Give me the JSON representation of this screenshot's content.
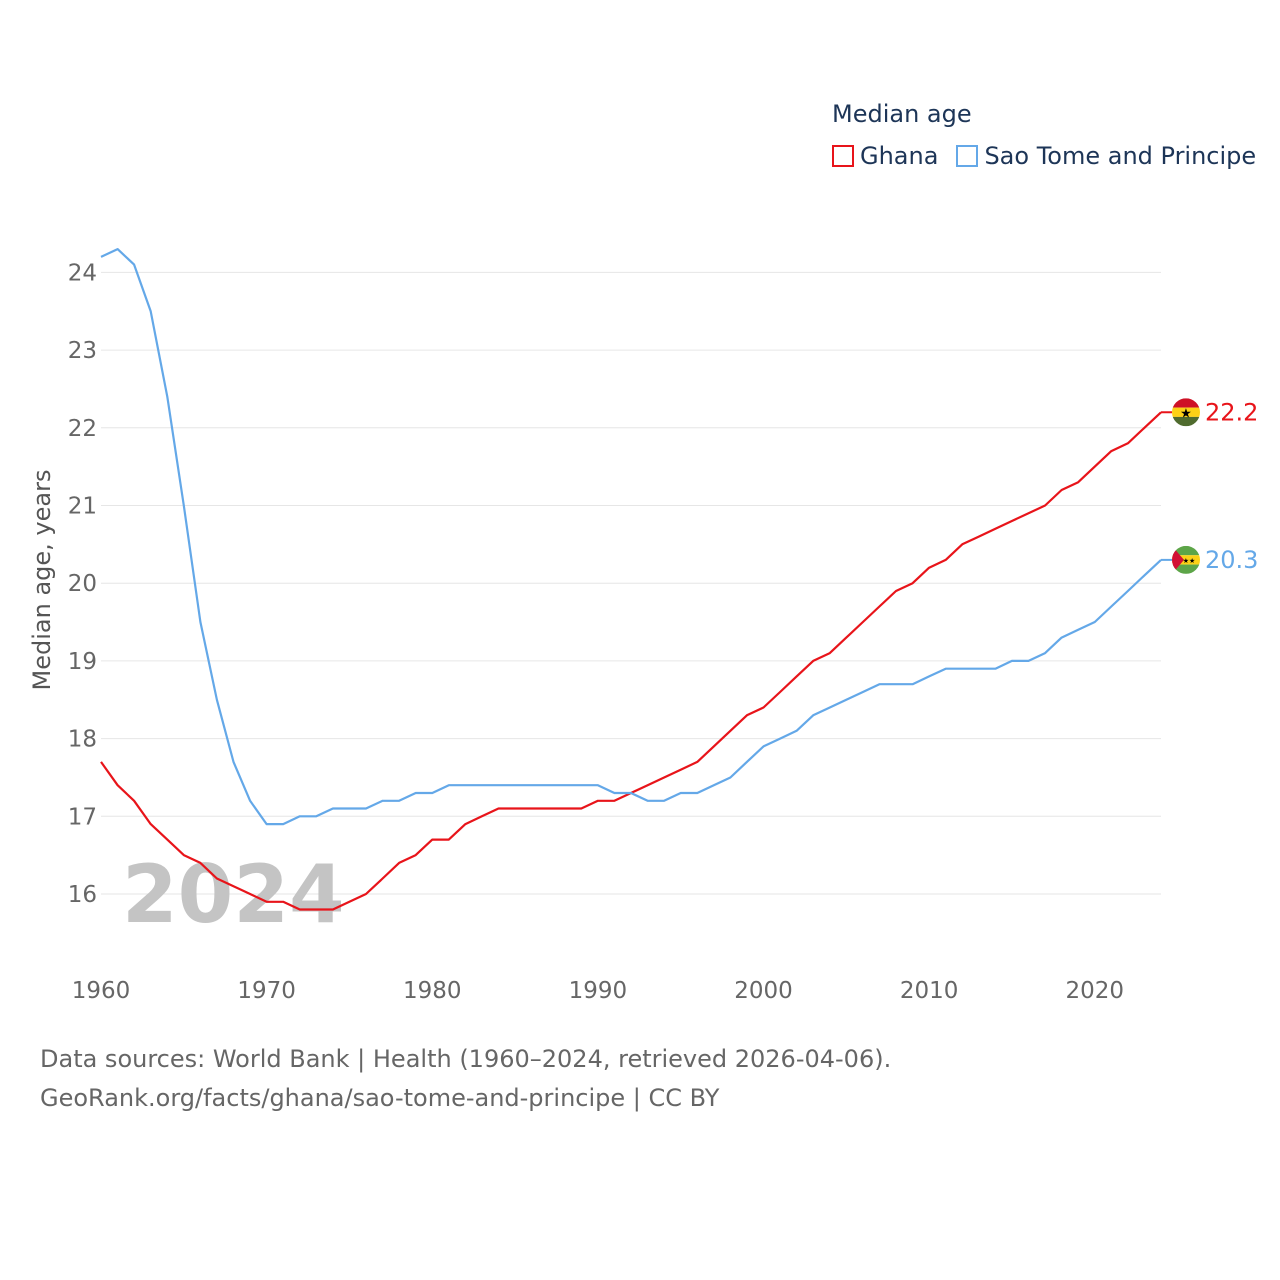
{
  "legend": {
    "title": "Median age",
    "items": [
      {
        "label": "Ghana",
        "color": "#e8141a"
      },
      {
        "label": "Sao Tome and Principe",
        "color": "#64a8e8"
      }
    ]
  },
  "overlay_year": "2024",
  "source": {
    "line1": "Data sources: World Bank | Health (1960–2024, retrieved 2026-04-06).",
    "line2": "GeoRank.org/facts/ghana/sao-tome-and-principe | CC BY"
  },
  "chart_data": {
    "type": "line",
    "title": "Median age",
    "xlabel": "",
    "ylabel": "Median age, years",
    "xlim": [
      1960,
      2024
    ],
    "ylim": [
      15.3,
      24.7
    ],
    "xticks": [
      1960,
      1970,
      1980,
      1990,
      2000,
      2010,
      2020
    ],
    "yticks": [
      16,
      17,
      18,
      19,
      20,
      21,
      22,
      23,
      24
    ],
    "grid": true,
    "x": [
      1960,
      1961,
      1962,
      1963,
      1964,
      1965,
      1966,
      1967,
      1968,
      1969,
      1970,
      1971,
      1972,
      1973,
      1974,
      1975,
      1976,
      1977,
      1978,
      1979,
      1980,
      1981,
      1982,
      1983,
      1984,
      1985,
      1986,
      1987,
      1988,
      1989,
      1990,
      1991,
      1992,
      1993,
      1994,
      1995,
      1996,
      1997,
      1998,
      1999,
      2000,
      2001,
      2002,
      2003,
      2004,
      2005,
      2006,
      2007,
      2008,
      2009,
      2010,
      2011,
      2012,
      2013,
      2014,
      2015,
      2016,
      2017,
      2018,
      2019,
      2020,
      2021,
      2022,
      2023,
      2024
    ],
    "series": [
      {
        "name": "Ghana",
        "color": "#e8141a",
        "end_label": "22.2",
        "values": [
          17.7,
          17.4,
          17.2,
          16.9,
          16.7,
          16.5,
          16.4,
          16.2,
          16.1,
          16.0,
          15.9,
          15.9,
          15.8,
          15.8,
          15.8,
          15.9,
          16.0,
          16.2,
          16.4,
          16.5,
          16.7,
          16.7,
          16.9,
          17.0,
          17.1,
          17.1,
          17.1,
          17.1,
          17.1,
          17.1,
          17.2,
          17.2,
          17.3,
          17.4,
          17.5,
          17.6,
          17.7,
          17.9,
          18.1,
          18.3,
          18.4,
          18.6,
          18.8,
          19.0,
          19.1,
          19.3,
          19.5,
          19.7,
          19.9,
          20.0,
          20.2,
          20.3,
          20.5,
          20.6,
          20.7,
          20.8,
          20.9,
          21.0,
          21.2,
          21.3,
          21.5,
          21.7,
          21.8,
          22.0,
          22.2
        ]
      },
      {
        "name": "Sao Tome and Principe",
        "color": "#64a8e8",
        "end_label": "20.3",
        "values": [
          24.2,
          24.3,
          24.1,
          23.5,
          22.4,
          21.0,
          19.5,
          18.5,
          17.7,
          17.2,
          16.9,
          16.9,
          17.0,
          17.0,
          17.1,
          17.1,
          17.1,
          17.2,
          17.2,
          17.3,
          17.3,
          17.4,
          17.4,
          17.4,
          17.4,
          17.4,
          17.4,
          17.4,
          17.4,
          17.4,
          17.4,
          17.3,
          17.3,
          17.2,
          17.2,
          17.3,
          17.3,
          17.4,
          17.5,
          17.7,
          17.9,
          18.0,
          18.1,
          18.3,
          18.4,
          18.5,
          18.6,
          18.7,
          18.7,
          18.7,
          18.8,
          18.9,
          18.9,
          18.9,
          18.9,
          19.0,
          19.0,
          19.1,
          19.3,
          19.4,
          19.5,
          19.7,
          19.9,
          20.1,
          20.3
        ]
      }
    ]
  }
}
